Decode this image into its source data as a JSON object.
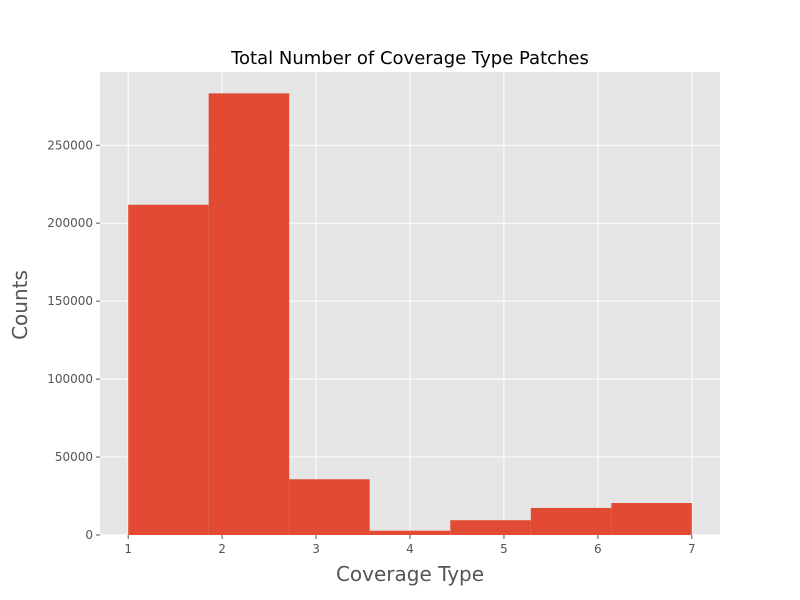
{
  "chart_data": {
    "type": "bar",
    "title": "Total Number of Coverage Type Patches",
    "xlabel": "Coverage Type",
    "ylabel": "Counts",
    "x_ticks": [
      1,
      2,
      3,
      4,
      5,
      6,
      7
    ],
    "y_ticks": [
      0,
      50000,
      100000,
      150000,
      200000,
      250000
    ],
    "xlim": [
      0.7,
      7.3
    ],
    "ylim": [
      0,
      297000
    ],
    "grid": true,
    "bins": [
      {
        "start": 1.0,
        "end": 1.857,
        "value": 211840
      },
      {
        "start": 1.857,
        "end": 2.714,
        "value": 283301
      },
      {
        "start": 2.714,
        "end": 3.571,
        "value": 35754
      },
      {
        "start": 3.571,
        "end": 4.429,
        "value": 2747
      },
      {
        "start": 4.429,
        "end": 5.286,
        "value": 9493
      },
      {
        "start": 5.286,
        "end": 6.143,
        "value": 17367
      },
      {
        "start": 6.143,
        "end": 7.0,
        "value": 20510
      }
    ],
    "colors": {
      "bar": "#E24A33",
      "plot_background": "#E5E5E5",
      "grid": "#FFFFFF",
      "text": "#555555"
    }
  }
}
